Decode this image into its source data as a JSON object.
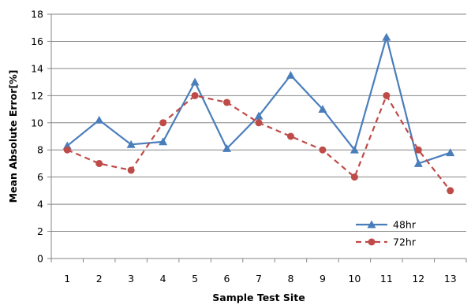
{
  "chart_data": {
    "type": "line",
    "xlabel": "Sample Test Site",
    "ylabel": "Mean Absolute Error[%]",
    "categories": [
      "1",
      "2",
      "3",
      "4",
      "5",
      "6",
      "7",
      "8",
      "9",
      "10",
      "11",
      "12",
      "13"
    ],
    "ylim": [
      0,
      18
    ],
    "yticks": [
      0,
      2,
      4,
      6,
      8,
      10,
      12,
      14,
      16,
      18
    ],
    "grid": "horizontal",
    "legend_position": "bottom-right",
    "series": [
      {
        "name": "48hr",
        "color": "#4a7ebb",
        "line_style": "solid",
        "marker": "triangle",
        "values": [
          8.3,
          10.2,
          8.4,
          8.6,
          13.0,
          8.1,
          10.5,
          13.5,
          11.0,
          8.0,
          16.3,
          7.0,
          7.8
        ]
      },
      {
        "name": "72hr",
        "color": "#be4b48",
        "line_style": "dashed",
        "marker": "circle",
        "values": [
          8.0,
          7.0,
          6.5,
          10.0,
          12.0,
          11.5,
          10.0,
          9.0,
          8.0,
          6.0,
          12.0,
          8.0,
          5.0
        ]
      }
    ]
  }
}
